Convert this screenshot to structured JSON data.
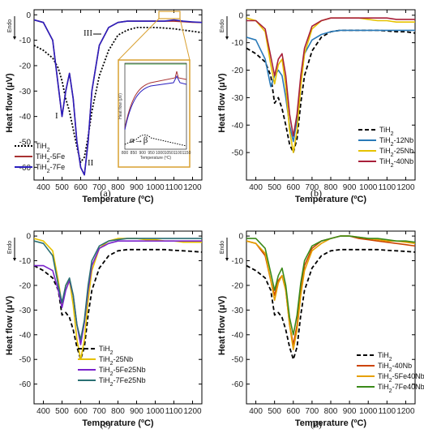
{
  "figure": {
    "x_unit_sup": "o"
  },
  "chart_data": [
    {
      "panel_label": "(a)",
      "type": "line",
      "xlabel": "Temperature (ºC)",
      "ylabel": "Heat flow (μV)",
      "endo_label": "Endo",
      "xlim": [
        350,
        1250
      ],
      "ylim": [
        -65,
        2
      ],
      "xticks": [
        "400",
        "500",
        "600",
        "700",
        "800",
        "900",
        "1000",
        "1100",
        "1200"
      ],
      "yticks": [
        "0",
        "-10",
        "-20",
        "-30",
        "-40",
        "-50",
        "-60"
      ],
      "x": [
        350,
        400,
        450,
        480,
        500,
        520,
        540,
        560,
        580,
        600,
        620,
        640,
        660,
        700,
        750,
        800,
        850,
        900,
        950,
        1000,
        1050,
        1100,
        1150,
        1200,
        1250
      ],
      "series": [
        {
          "name": "TiH2",
          "name_base": "TiH",
          "name_sub": "2",
          "color": "#000000",
          "dash": "dotted",
          "values": [
            -12,
            -14,
            -17,
            -21,
            -26,
            -33,
            -38,
            -45,
            -52,
            -58,
            -56,
            -48,
            -38,
            -24,
            -14,
            -8,
            -6,
            -5,
            -5,
            -5,
            -5.2,
            -5.5,
            -6,
            -6.5,
            -7
          ]
        },
        {
          "name": "TiH2-5Fe",
          "name_base": "TiH",
          "name_sub": "2",
          "name_suffix": "-5Fe",
          "color": "#a83232",
          "dash": "solid",
          "values": [
            -2,
            -3,
            -10,
            -28,
            -40,
            -30,
            -23,
            -33,
            -50,
            -60,
            -63,
            -50,
            -30,
            -12,
            -5,
            -3,
            -2.5,
            -2.5,
            -2.5,
            -2.5,
            -2.5,
            -2.5,
            -2.7,
            -2.9,
            -3
          ]
        },
        {
          "name": "TiH2-7Fe",
          "name_base": "TiH",
          "name_sub": "2",
          "name_suffix": "-7Fe",
          "color": "#2a1fbf",
          "dash": "solid",
          "values": [
            -2,
            -3,
            -10,
            -28,
            -40,
            -30,
            -23,
            -33,
            -50,
            -60,
            -63,
            -50,
            -30,
            -12,
            -5,
            -3,
            -2.5,
            -2.5,
            -2.5,
            -2.5,
            -2.5,
            -2,
            -2.5,
            -2.8,
            -3
          ]
        }
      ],
      "annotations": [
        "I",
        "II",
        "III"
      ],
      "inset": {
        "label": "α→β",
        "xticks": [
          "800",
          "850",
          "900",
          "950",
          "1000",
          "1050",
          "1100",
          "1150"
        ],
        "ylabel": "Heat flow (μV)",
        "xlabel": "Temperature (ºC)"
      }
    },
    {
      "panel_label": "(b)",
      "type": "line",
      "xlabel": "Temperature (ºC)",
      "ylabel": "Heat flow (μV)",
      "endo_label": "Endo",
      "xlim": [
        350,
        1250
      ],
      "ylim": [
        -60,
        2
      ],
      "xticks": [
        "400",
        "500",
        "600",
        "700",
        "800",
        "900",
        "1000",
        "1100",
        "1200"
      ],
      "yticks": [
        "0",
        "-10",
        "-20",
        "-30",
        "-40",
        "-50"
      ],
      "x": [
        350,
        400,
        450,
        480,
        500,
        520,
        540,
        560,
        580,
        600,
        620,
        640,
        660,
        700,
        750,
        800,
        850,
        900,
        950,
        1000,
        1050,
        1100,
        1150,
        1200,
        1250
      ],
      "series": [
        {
          "name": "TiH2",
          "name_base": "TiH",
          "name_sub": "2",
          "color": "#000000",
          "dash": "dashed",
          "values": [
            -12,
            -14,
            -17,
            -22,
            -32,
            -30,
            -34,
            -40,
            -47,
            -50,
            -45,
            -32,
            -22,
            -13,
            -8,
            -6,
            -5.5,
            -5.5,
            -5.5,
            -5.5,
            -5.5,
            -5.7,
            -6,
            -6,
            -6.5
          ]
        },
        {
          "name": "TiH2-12Nb",
          "name_base": "TiH",
          "name_sub": "2",
          "name_suffix": "-12Nb",
          "color": "#2a7ab8",
          "dash": "solid",
          "values": [
            -8,
            -9,
            -16,
            -26,
            -22,
            -20,
            -22,
            -30,
            -40,
            -46,
            -38,
            -24,
            -14,
            -9,
            -7,
            -6,
            -5.5,
            -5.5,
            -5.5,
            -5.5,
            -5.5,
            -5.5,
            -5.5,
            -5.5,
            -5.5
          ]
        },
        {
          "name": "TiH2-25Nb",
          "name_base": "TiH",
          "name_sub": "2",
          "name_suffix": "-25Nb",
          "color": "#e6c200",
          "dash": "solid",
          "values": [
            -1,
            -2,
            -6,
            -18,
            -25,
            -18,
            -16,
            -26,
            -42,
            -50,
            -42,
            -26,
            -14,
            -5,
            -2,
            -1,
            -1,
            -1,
            -1,
            -1.5,
            -2,
            -2,
            -2.5,
            -2.5,
            -2.5
          ]
        },
        {
          "name": "TiH2-40Nb",
          "name_base": "TiH",
          "name_sub": "2",
          "name_suffix": "-40Nb",
          "color": "#a8203a",
          "dash": "solid",
          "values": [
            -2,
            -2,
            -5,
            -15,
            -22,
            -16,
            -14,
            -22,
            -36,
            -44,
            -36,
            -22,
            -12,
            -4,
            -2,
            -1,
            -1,
            -1,
            -1,
            -1,
            -1,
            -1,
            -1.5,
            -1.5,
            -1.5
          ]
        }
      ]
    },
    {
      "panel_label": "(c)",
      "type": "line",
      "xlabel": "Temperature (ºC)",
      "ylabel": "Heat flow (μV)",
      "endo_label": "Endo",
      "xlim": [
        350,
        1250
      ],
      "ylim": [
        -68,
        2
      ],
      "xticks": [
        "400",
        "500",
        "600",
        "700",
        "800",
        "900",
        "1000",
        "1100",
        "1200"
      ],
      "yticks": [
        "0",
        "-10",
        "-20",
        "-30",
        "-40",
        "-50",
        "-60"
      ],
      "x": [
        350,
        400,
        450,
        480,
        500,
        520,
        540,
        560,
        580,
        600,
        620,
        640,
        660,
        700,
        750,
        800,
        850,
        900,
        950,
        1000,
        1050,
        1100,
        1150,
        1200,
        1250
      ],
      "series": [
        {
          "name": "TiH2",
          "name_base": "TiH",
          "name_sub": "2",
          "color": "#000000",
          "dash": "dashed",
          "values": [
            -12,
            -14,
            -17,
            -22,
            -32,
            -31,
            -33,
            -38,
            -45,
            -50,
            -45,
            -32,
            -22,
            -13,
            -8,
            -6,
            -5.5,
            -5.5,
            -5.5,
            -5.5,
            -5.5,
            -5.8,
            -6,
            -6.2,
            -6.5
          ]
        },
        {
          "name": "TiH2-25Nb",
          "name_base": "TiH",
          "name_sub": "2",
          "name_suffix": "-25Nb",
          "color": "#e6c200",
          "dash": "solid",
          "values": [
            -1,
            -2,
            -6,
            -18,
            -28,
            -20,
            -18,
            -28,
            -42,
            -50,
            -42,
            -26,
            -14,
            -5,
            -2,
            -1,
            -1,
            -1,
            -1.5,
            -1.5,
            -2,
            -2,
            -2.5,
            -2.5,
            -2.5
          ]
        },
        {
          "name": "TiH2-5Fe25Nb",
          "name_base": "TiH",
          "name_sub": "2",
          "name_suffix": "-5Fe25Nb",
          "color": "#7a22cc",
          "dash": "solid",
          "values": [
            -12,
            -12,
            -14,
            -22,
            -29,
            -22,
            -18,
            -24,
            -36,
            -44,
            -35,
            -22,
            -12,
            -5,
            -3,
            -2,
            -2,
            -2,
            -2,
            -2,
            -2,
            -2,
            -2,
            -2,
            -2
          ]
        },
        {
          "name": "TiH2-7Fe25Nb",
          "name_base": "TiH",
          "name_sub": "2",
          "name_suffix": "-7Fe25Nb",
          "color": "#2a6f73",
          "dash": "solid",
          "values": [
            -2,
            -3,
            -8,
            -20,
            -27,
            -20,
            -17,
            -24,
            -36,
            -42,
            -34,
            -20,
            -10,
            -4,
            -2,
            -1.5,
            -1,
            -1,
            -1,
            -1,
            -1,
            -1,
            -1,
            -1,
            -1
          ]
        }
      ]
    },
    {
      "panel_label": "(d)",
      "type": "line",
      "xlabel": "Temperature (ºC)",
      "ylabel": "Heat flow (μV)",
      "endo_label": "Endo",
      "xlim": [
        350,
        1250
      ],
      "ylim": [
        -68,
        2
      ],
      "xticks": [
        "400",
        "500",
        "600",
        "700",
        "800",
        "900",
        "1000",
        "1100",
        "1200"
      ],
      "yticks": [
        "0",
        "-10",
        "-20",
        "-30",
        "-40",
        "-50",
        "-60"
      ],
      "x": [
        350,
        400,
        450,
        480,
        500,
        520,
        540,
        560,
        580,
        600,
        620,
        640,
        660,
        700,
        750,
        800,
        850,
        900,
        950,
        1000,
        1050,
        1100,
        1150,
        1200,
        1250
      ],
      "series": [
        {
          "name": "TiH2",
          "name_base": "TiH",
          "name_sub": "2",
          "color": "#000000",
          "dash": "dashed",
          "values": [
            -12,
            -14,
            -17,
            -22,
            -32,
            -31,
            -33,
            -38,
            -45,
            -50,
            -45,
            -32,
            -22,
            -13,
            -8,
            -6,
            -5.5,
            -5.5,
            -5.5,
            -5.5,
            -5.5,
            -5.8,
            -6,
            -6.2,
            -6.5
          ]
        },
        {
          "name": "TiH2-40Nb",
          "name_base": "TiH",
          "name_sub": "2",
          "name_suffix": "-40Nb",
          "color": "#cc4400",
          "dash": "solid",
          "values": [
            -2,
            -3,
            -8,
            -18,
            -24,
            -18,
            -16,
            -22,
            -36,
            -44,
            -36,
            -22,
            -12,
            -5,
            -2,
            -1,
            0,
            0,
            -1,
            -1.5,
            -2,
            -2.5,
            -3,
            -3.5,
            -4
          ]
        },
        {
          "name": "TiH2-5Fe40Nb",
          "name_base": "TiH",
          "name_sub": "2",
          "name_suffix": "-5Fe40Nb",
          "color": "#e6a000",
          "dash": "solid",
          "values": [
            -2,
            -3,
            -7,
            -18,
            -26,
            -19,
            -16,
            -22,
            -36,
            -46,
            -38,
            -24,
            -14,
            -6,
            -3,
            -1,
            0,
            0,
            -0.5,
            -1,
            -1.5,
            -2,
            -2,
            -2.5,
            -3
          ]
        },
        {
          "name": "TiH2-7Fe40Nb",
          "name_base": "TiH",
          "name_sub": "2",
          "name_suffix": "-7Fe40Nb",
          "color": "#3a8a1a",
          "dash": "solid",
          "values": [
            -1,
            -1,
            -5,
            -15,
            -22,
            -16,
            -13,
            -20,
            -33,
            -40,
            -32,
            -19,
            -10,
            -4,
            -2,
            -1,
            0,
            0,
            -0.5,
            -1,
            -1,
            -1.5,
            -2,
            -2,
            -2.5
          ]
        }
      ]
    }
  ]
}
